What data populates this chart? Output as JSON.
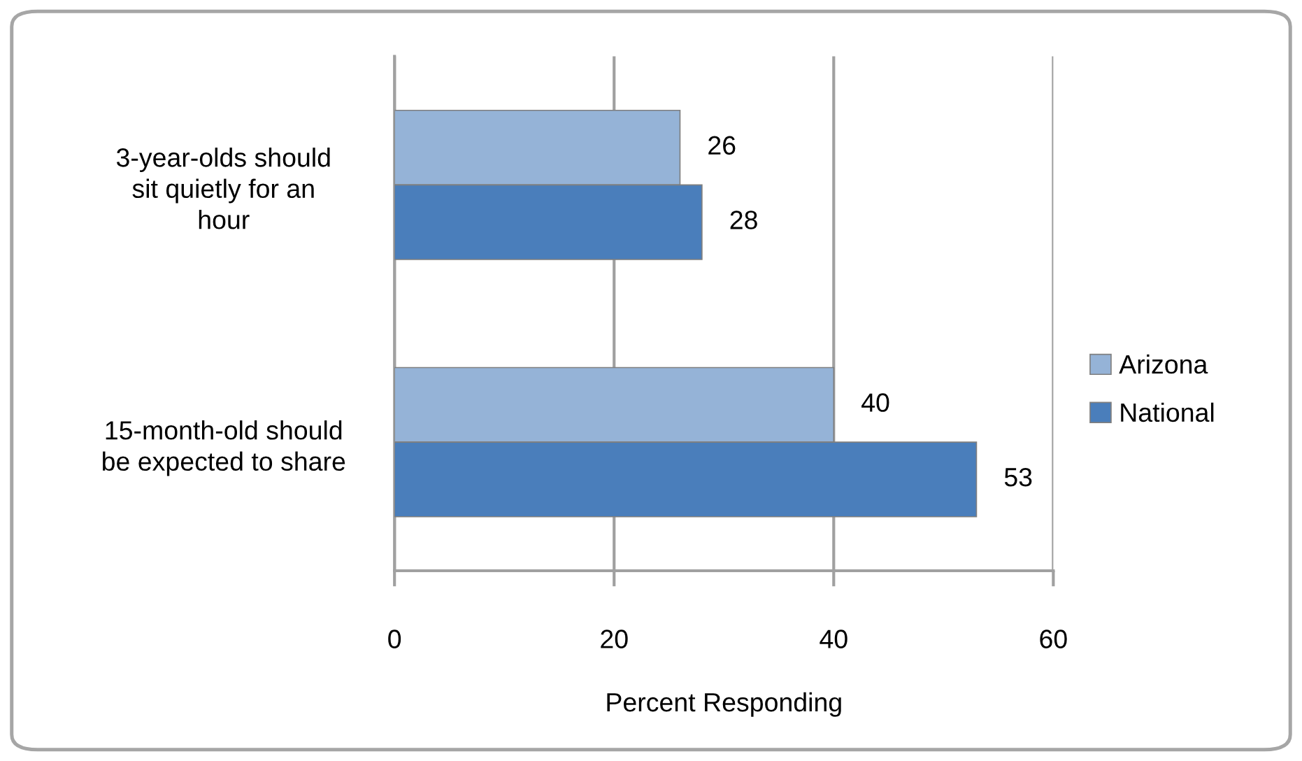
{
  "chart_data": {
    "type": "bar",
    "orientation": "horizontal",
    "categories": [
      "3-year-olds should\nsit quietly for an\nhour",
      "15-month-old should\nbe expected to share"
    ],
    "series": [
      {
        "name": "Arizona",
        "color": "#95b3d7",
        "values": [
          26,
          40
        ]
      },
      {
        "name": "National",
        "color": "#4a7ebb",
        "values": [
          28,
          53
        ]
      }
    ],
    "xlabel": "Percent Responding",
    "xlim": [
      0,
      60
    ],
    "xticks": [
      0,
      20,
      40,
      60
    ],
    "grid": "x",
    "legend": "right",
    "data_labels": true
  }
}
